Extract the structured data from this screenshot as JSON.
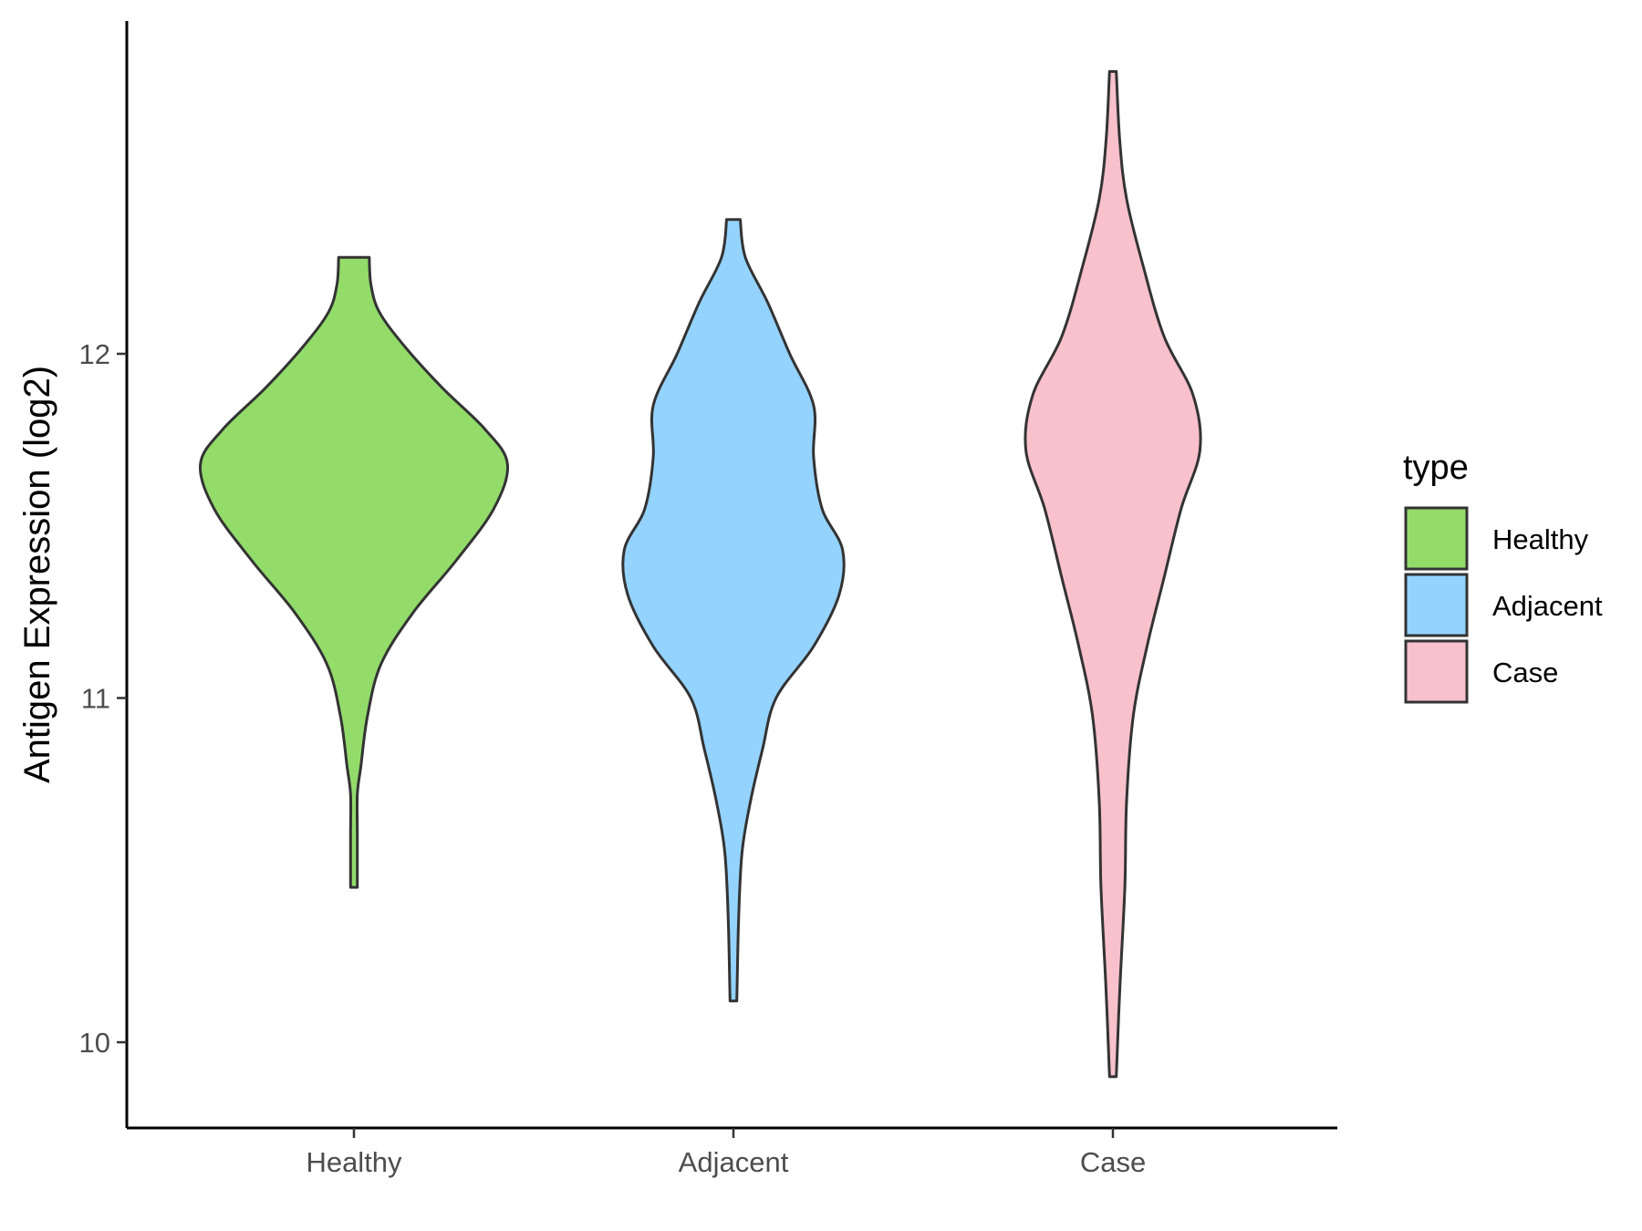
{
  "chart_data": {
    "type": "violin",
    "xlabel": "",
    "ylabel": "Antigen Expression (log2)",
    "ylim": [
      9.75,
      12.95
    ],
    "yticks": [
      10,
      11,
      12
    ],
    "categories": [
      "Healthy",
      "Adjacent",
      "Case"
    ],
    "series": [
      {
        "name": "Healthy",
        "color": "#93dc6a",
        "min": 10.45,
        "max": 12.28,
        "density": [
          [
            10.45,
            0.02
          ],
          [
            10.6,
            0.02
          ],
          [
            10.72,
            0.02
          ],
          [
            10.8,
            0.04
          ],
          [
            10.95,
            0.08
          ],
          [
            11.1,
            0.16
          ],
          [
            11.25,
            0.35
          ],
          [
            11.4,
            0.6
          ],
          [
            11.55,
            0.82
          ],
          [
            11.68,
            0.9
          ],
          [
            11.78,
            0.77
          ],
          [
            11.9,
            0.52
          ],
          [
            12.02,
            0.3
          ],
          [
            12.12,
            0.15
          ],
          [
            12.2,
            0.1
          ],
          [
            12.28,
            0.09
          ]
        ]
      },
      {
        "name": "Adjacent",
        "color": "#94d3fd",
        "min": 10.12,
        "max": 12.39,
        "density": [
          [
            10.12,
            0.02
          ],
          [
            10.35,
            0.03
          ],
          [
            10.55,
            0.05
          ],
          [
            10.7,
            0.1
          ],
          [
            10.85,
            0.17
          ],
          [
            11.0,
            0.25
          ],
          [
            11.15,
            0.47
          ],
          [
            11.3,
            0.62
          ],
          [
            11.43,
            0.64
          ],
          [
            11.55,
            0.52
          ],
          [
            11.7,
            0.47
          ],
          [
            11.85,
            0.47
          ],
          [
            12.0,
            0.33
          ],
          [
            12.15,
            0.2
          ],
          [
            12.28,
            0.07
          ],
          [
            12.39,
            0.04
          ]
        ]
      },
      {
        "name": "Case",
        "color": "#f8c1cc",
        "min": 9.9,
        "max": 12.82,
        "density": [
          [
            9.9,
            0.02
          ],
          [
            10.15,
            0.04
          ],
          [
            10.45,
            0.07
          ],
          [
            10.7,
            0.08
          ],
          [
            10.95,
            0.12
          ],
          [
            11.15,
            0.2
          ],
          [
            11.35,
            0.3
          ],
          [
            11.55,
            0.4
          ],
          [
            11.72,
            0.51
          ],
          [
            11.88,
            0.47
          ],
          [
            12.05,
            0.3
          ],
          [
            12.25,
            0.18
          ],
          [
            12.45,
            0.08
          ],
          [
            12.62,
            0.04
          ],
          [
            12.82,
            0.02
          ]
        ]
      }
    ],
    "legend": {
      "title": "type",
      "position": "right",
      "entries": [
        "Healthy",
        "Adjacent",
        "Case"
      ]
    },
    "grid": false
  }
}
